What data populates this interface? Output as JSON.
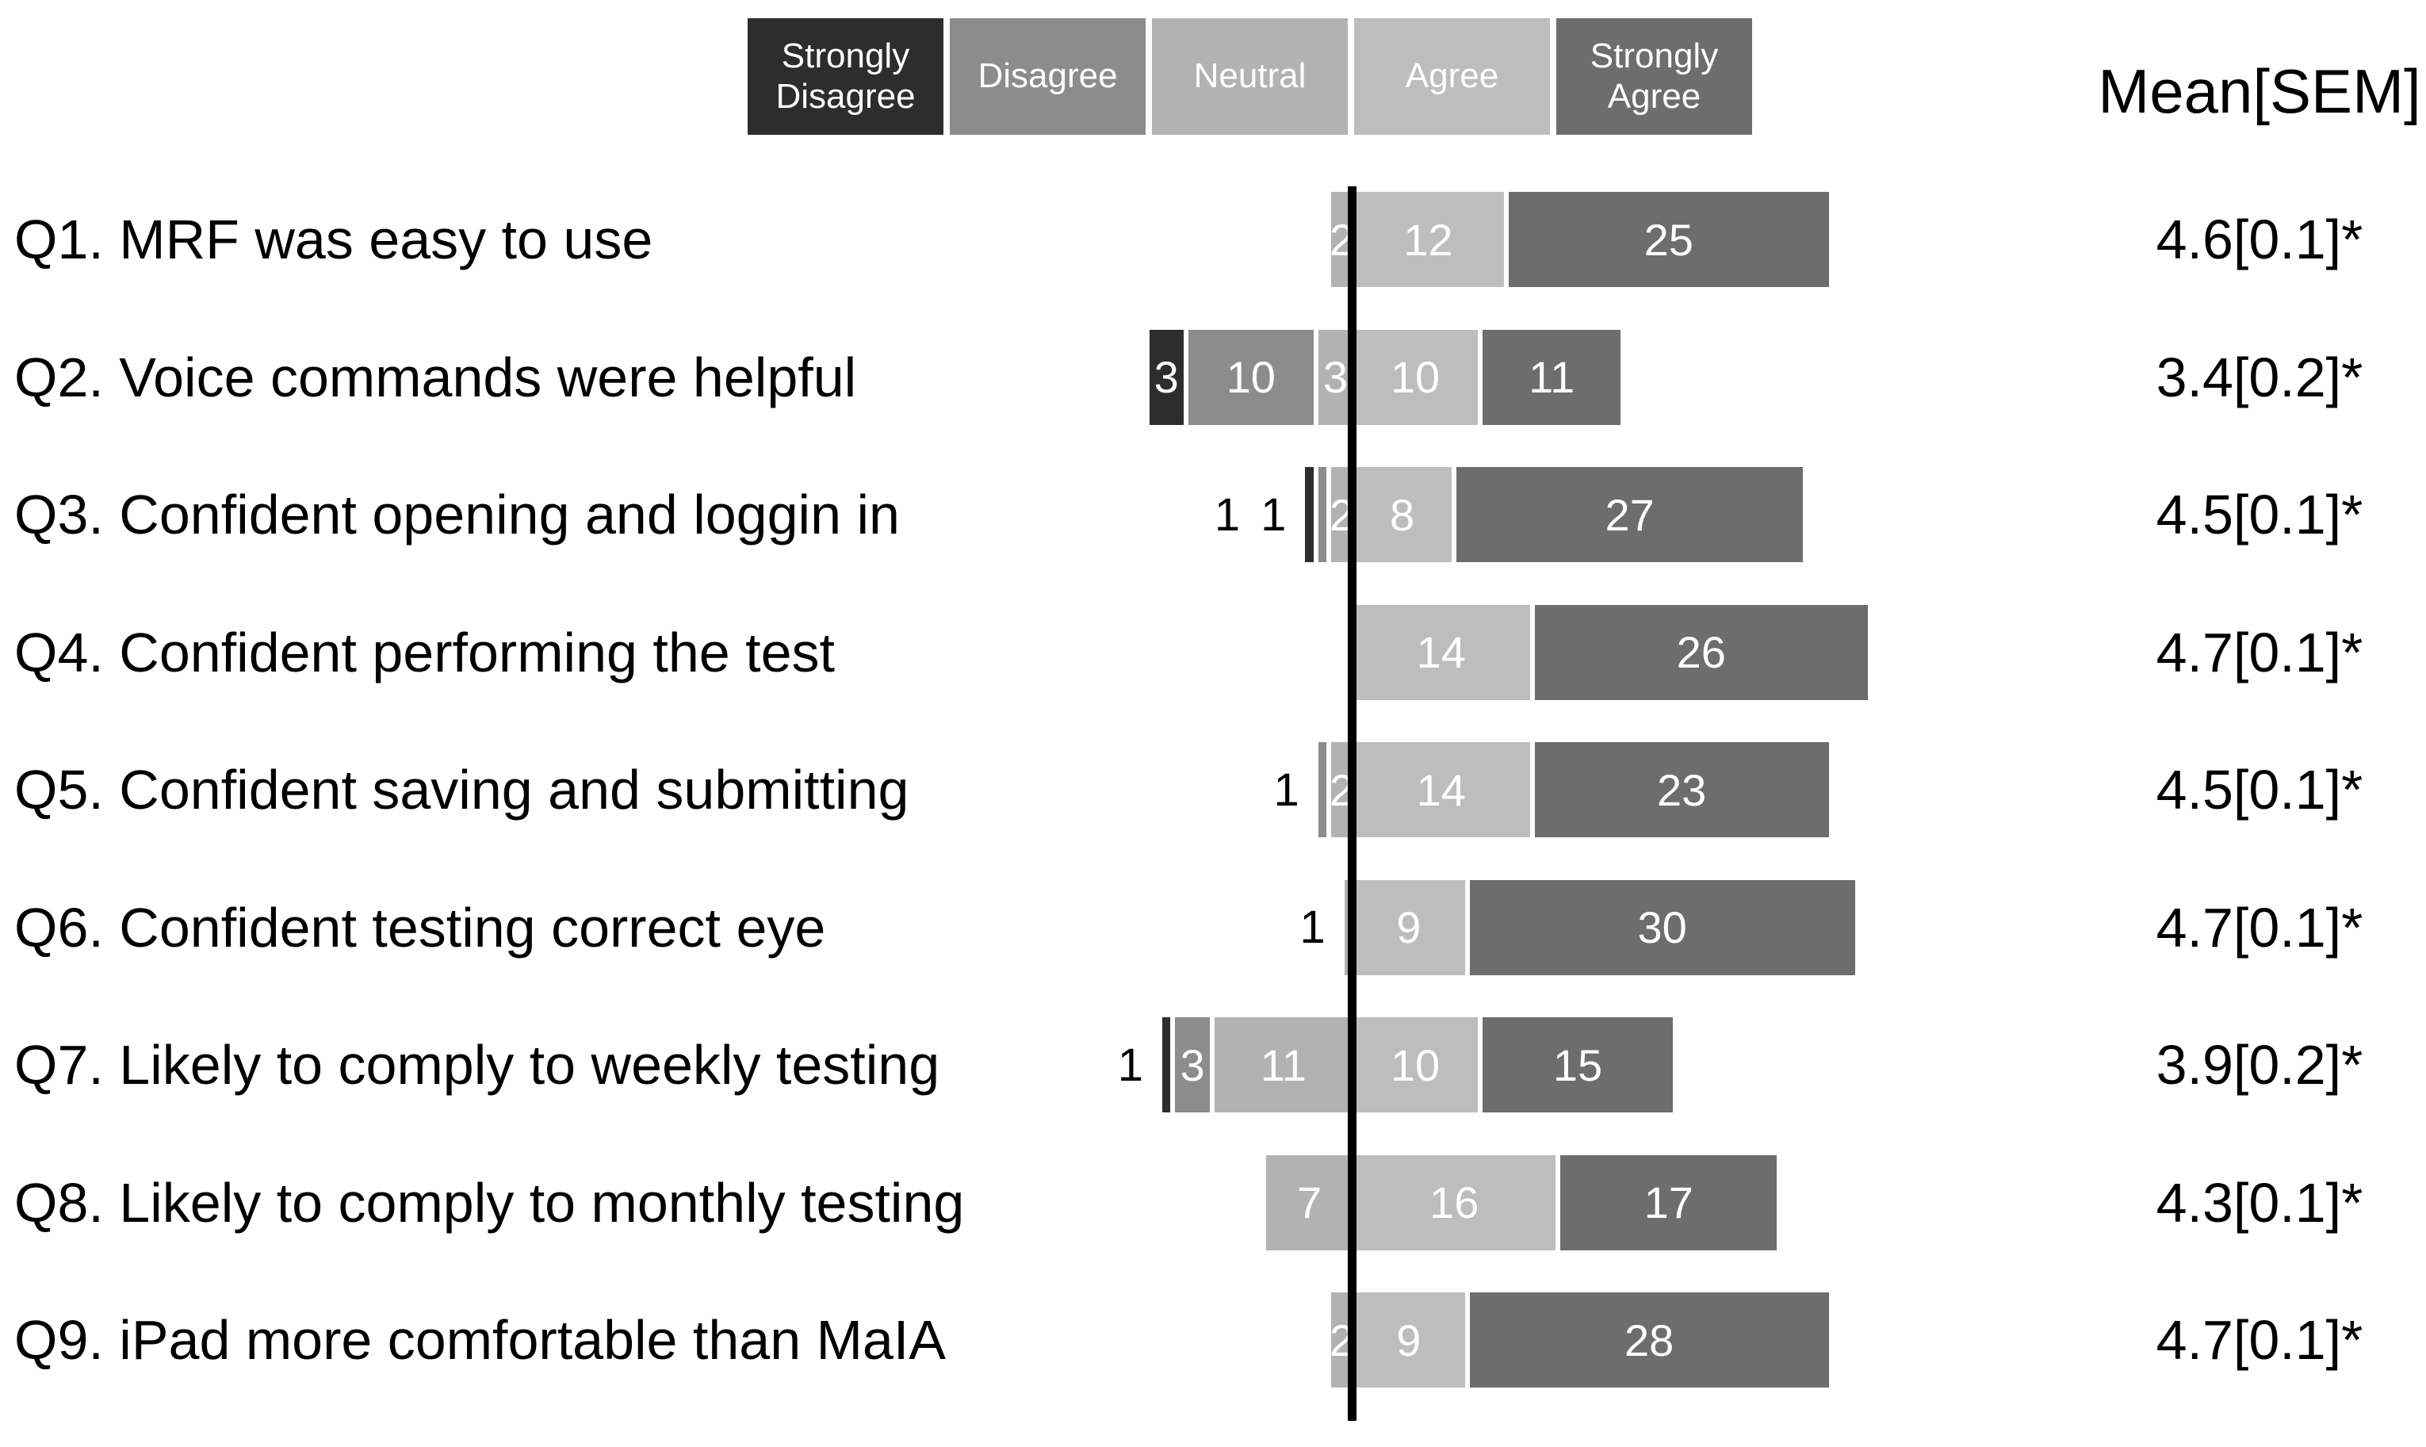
{
  "chart_data": {
    "type": "bar",
    "variant": "diverging_stacked_likert",
    "legend": [
      "Strongly Disagree",
      "Disagree",
      "Neutral",
      "Agree",
      "Strongly Agree"
    ],
    "legend_colors": [
      "#2d2d2d",
      "#8c8c8c",
      "#b2b2b2",
      "#bdbdbd",
      "#6d6d6d"
    ],
    "mean_header": "Mean[SEM]",
    "layout_hints": {
      "alignment": "vertical line at Neutral/Agree boundary",
      "line_color": "#000000",
      "inside_value_color": "#ffffff",
      "outside_value_color": "#000000",
      "background": "#ffffff"
    },
    "categories": [
      "Strongly Disagree",
      "Disagree",
      "Neutral",
      "Agree",
      "Strongly Agree"
    ],
    "rows": [
      {
        "label": "Q1. MRF was easy to use",
        "values": [
          0,
          0,
          2,
          12,
          25
        ],
        "mean": "4.6[0.1]*"
      },
      {
        "label": "Q2. Voice commands were helpful",
        "values": [
          3,
          10,
          3,
          10,
          11
        ],
        "mean": "3.4[0.2]*"
      },
      {
        "label": "Q3. Confident opening and loggin in",
        "values": [
          1,
          1,
          2,
          8,
          27
        ],
        "mean": "4.5[0.1]*"
      },
      {
        "label": "Q4. Confident performing the test",
        "values": [
          0,
          0,
          0,
          14,
          26
        ],
        "mean": "4.7[0.1]*"
      },
      {
        "label": "Q5. Confident saving and submitting",
        "values": [
          0,
          1,
          2,
          14,
          23
        ],
        "mean": "4.5[0.1]*"
      },
      {
        "label": "Q6. Confident testing correct eye",
        "values": [
          0,
          0,
          1,
          9,
          30
        ],
        "mean": "4.7[0.1]*"
      },
      {
        "label": "Q7. Likely to comply to weekly testing",
        "values": [
          1,
          3,
          11,
          10,
          15
        ],
        "mean": "3.9[0.2]*"
      },
      {
        "label": "Q8. Likely to comply to monthly testing",
        "values": [
          0,
          0,
          7,
          16,
          17
        ],
        "mean": "4.3[0.1]*"
      },
      {
        "label": "Q9. iPad more comfortable than MaIA",
        "values": [
          0,
          0,
          2,
          9,
          28
        ],
        "mean": "4.7[0.1]*"
      }
    ]
  }
}
